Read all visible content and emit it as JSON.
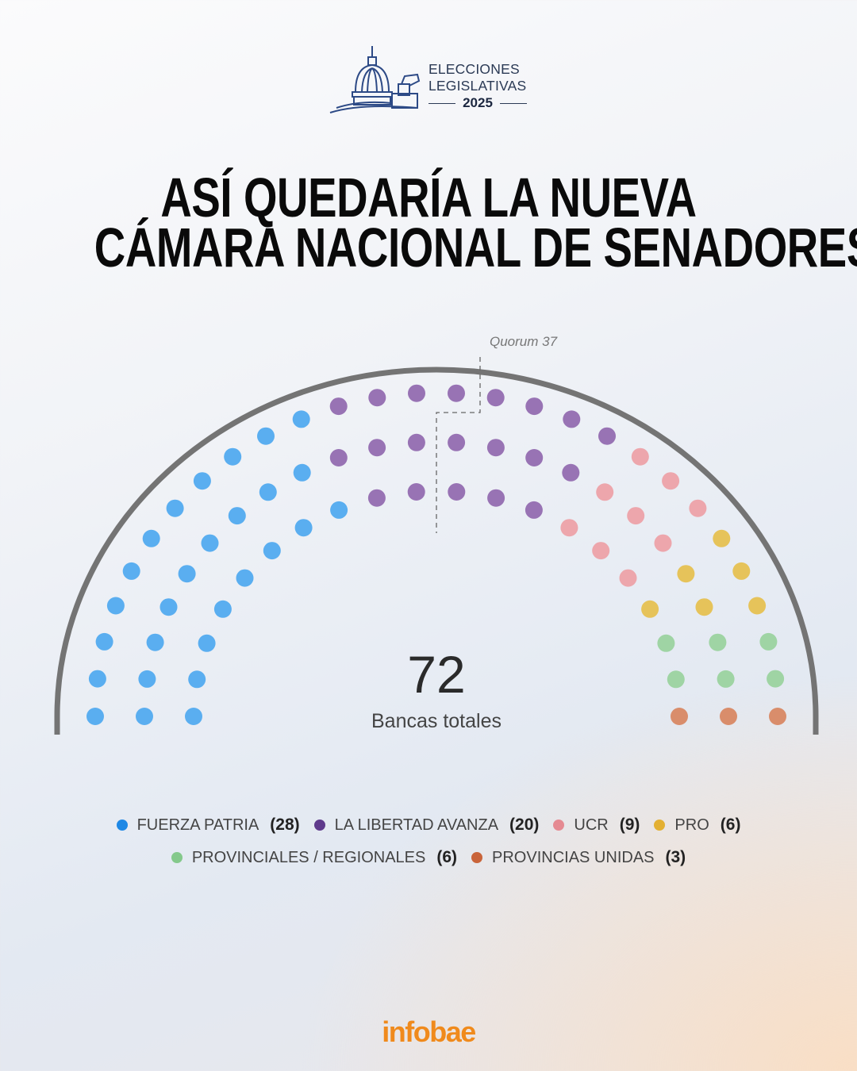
{
  "header": {
    "logo_line1": "ELECCIONES",
    "logo_line2": "LEGISLATIVAS",
    "logo_year": "2025"
  },
  "title": {
    "line1": "ASÍ QUEDARÍA LA NUEVA",
    "line2": "CÁMARA NACIONAL DE SENADORES"
  },
  "chart_data": {
    "type": "parliament",
    "total": 72,
    "total_label": "Bancas totales",
    "quorum": 37,
    "quorum_label": "Quorum 37",
    "rows": 3,
    "series": [
      {
        "name": "FUERZA PATRIA",
        "value": 28,
        "color": "#5aaef0",
        "legend_color": "#1e88e5",
        "count_label": "(28)"
      },
      {
        "name": "LA LIBERTAD AVANZA",
        "value": 20,
        "color": "#9873b4",
        "legend_color": "#5e3a8c",
        "count_label": "(20)"
      },
      {
        "name": "UCR",
        "value": 9,
        "color": "#eda6ac",
        "legend_color": "#e58a92",
        "count_label": "(9)"
      },
      {
        "name": "PRO",
        "value": 6,
        "color": "#e6c35a",
        "legend_color": "#e3b032",
        "count_label": "(6)"
      },
      {
        "name": "PROVINCIALES / REGIONALES",
        "value": 6,
        "color": "#9fd4a4",
        "legend_color": "#84c98b",
        "count_label": "(6)"
      },
      {
        "name": "PROVINCIAS UNIDAS",
        "value": 3,
        "color": "#d98d6b",
        "legend_color": "#c9643a",
        "count_label": "(3)"
      }
    ]
  },
  "footer": {
    "brand": "infobae"
  }
}
